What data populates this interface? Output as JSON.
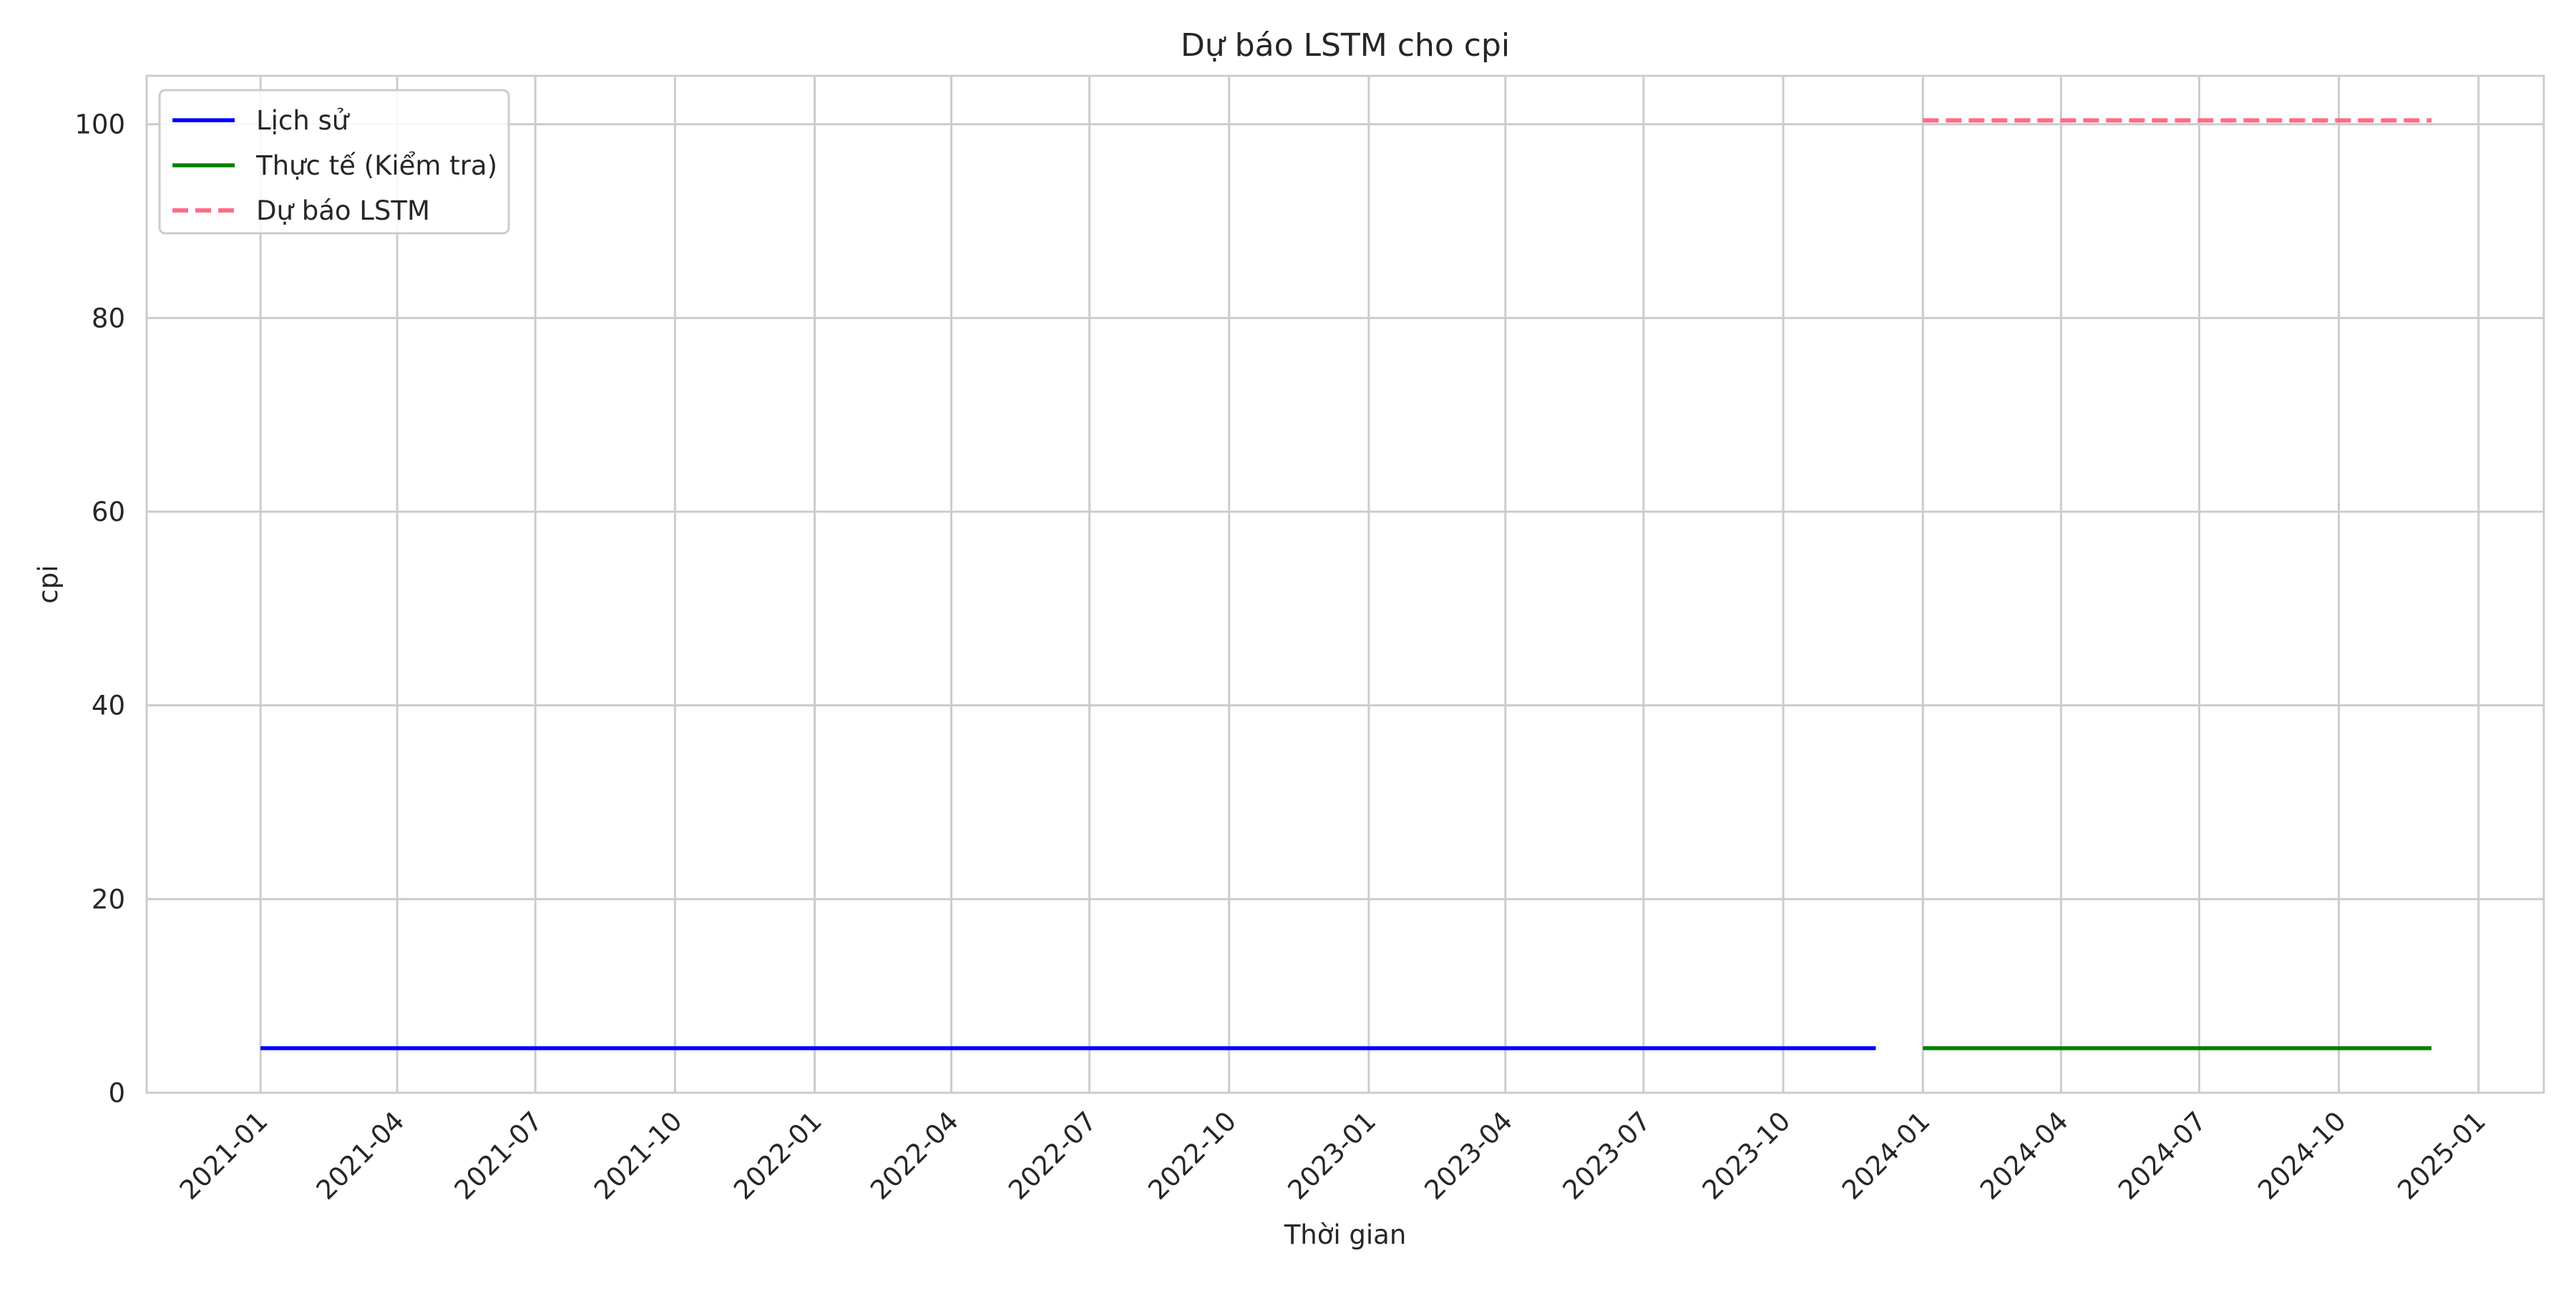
{
  "chart_data": {
    "type": "line",
    "title": "Dự báo LSTM cho cpi",
    "xlabel": "Thời gian",
    "ylabel": "cpi",
    "x_axis_type": "date",
    "xlim": [
      "2020-10-18",
      "2025-02-13"
    ],
    "ylim": [
      0,
      105
    ],
    "x_ticks": [
      "2021-01",
      "2021-04",
      "2021-07",
      "2021-10",
      "2022-01",
      "2022-04",
      "2022-07",
      "2022-10",
      "2023-01",
      "2023-04",
      "2023-07",
      "2023-10",
      "2024-01",
      "2024-04",
      "2024-07",
      "2024-10",
      "2025-01"
    ],
    "y_ticks": [
      0,
      20,
      40,
      60,
      80,
      100
    ],
    "grid": true,
    "legend_position": "upper-left",
    "series": [
      {
        "name": "Lịch sử",
        "color": "#0000ff",
        "style": "solid",
        "x": [
          "2021-01-01",
          "2023-12-01"
        ],
        "y": [
          4.6,
          4.6
        ]
      },
      {
        "name": "Thực tế (Kiểm tra)",
        "color": "#008000",
        "style": "solid",
        "x": [
          "2024-01-01",
          "2024-12-01"
        ],
        "y": [
          4.6,
          4.6
        ]
      },
      {
        "name": "Dự báo LSTM",
        "color": "#ff6b86",
        "style": "dashed",
        "x": [
          "2024-01-01",
          "2024-12-01"
        ],
        "y": [
          100.4,
          100.4
        ]
      }
    ]
  }
}
